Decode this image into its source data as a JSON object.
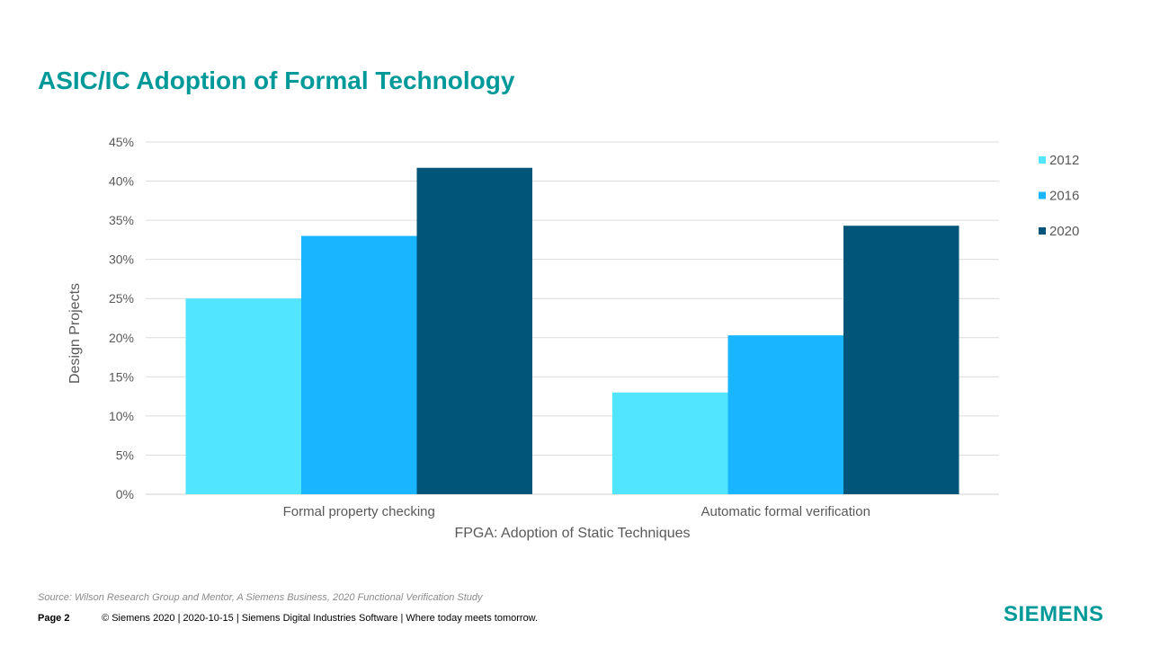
{
  "title": "ASIC/IC Adoption of Formal Technology",
  "chart_data": {
    "type": "bar",
    "categories": [
      "Formal property checking",
      "Automatic formal verification"
    ],
    "series": [
      {
        "name": "2012",
        "values": [
          25.0,
          13.0
        ],
        "color": "#52E5FF"
      },
      {
        "name": "2016",
        "values": [
          33.0,
          20.3
        ],
        "color": "#1AB5FF"
      },
      {
        "name": "2020",
        "values": [
          41.7,
          34.3
        ],
        "color": "#005579"
      }
    ],
    "xlabel": "FPGA: Adoption of Static Techniques",
    "ylabel": "Design Projects",
    "ylim": [
      0,
      45
    ],
    "yticks": [
      0,
      5,
      10,
      15,
      20,
      25,
      30,
      35,
      40,
      45
    ],
    "ytick_suffix": "%",
    "grid": true,
    "legend_position": "right"
  },
  "source": "Source:  Wilson Research Group and Mentor,  A Siemens Business, 2020 Functional Verification Study",
  "footer": {
    "page": "Page 2",
    "text": "© Siemens 2020 | 2020-10-15 | Siemens Digital Industries Software | Where today meets tomorrow."
  },
  "logo": "SIEMENS"
}
